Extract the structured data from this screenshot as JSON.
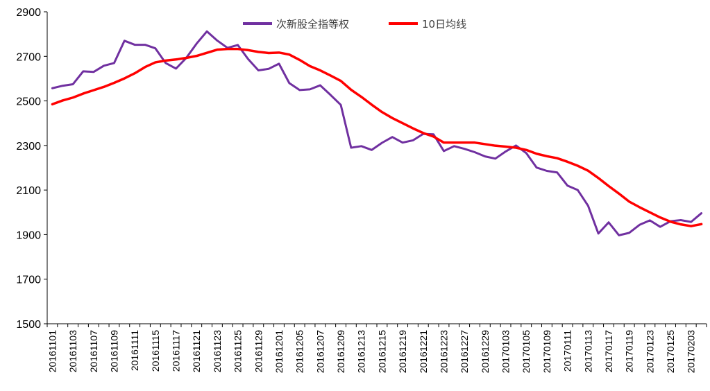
{
  "chart_data": {
    "type": "line",
    "title": "",
    "xlabel": "",
    "ylabel": "",
    "ylim": [
      1500,
      2900
    ],
    "yticks": [
      "1500",
      "1700",
      "1900",
      "2100",
      "2300",
      "2500",
      "2700",
      "2900"
    ],
    "xtick_labels": [
      "20161101",
      "20161103",
      "20161107",
      "20161109",
      "20161111",
      "20161115",
      "20161117",
      "20161121",
      "20161123",
      "20161125",
      "20161129",
      "20161201",
      "20161205",
      "20161207",
      "20161209",
      "20161213",
      "20161215",
      "20161219",
      "20161221",
      "20161223",
      "20161227",
      "20161229",
      "20170103",
      "20170105",
      "20170109",
      "20170111",
      "20170113",
      "20170117",
      "20170119",
      "20170123",
      "20170125",
      "20170203"
    ],
    "legend_position": "top-center",
    "series": [
      {
        "name": "次新股全指等权",
        "color": "#7030A0",
        "values": [
          2557,
          2568,
          2575,
          2633,
          2630,
          2658,
          2670,
          2770,
          2752,
          2752,
          2736,
          2670,
          2645,
          2693,
          2757,
          2812,
          2771,
          2738,
          2751,
          2688,
          2637,
          2644,
          2667,
          2580,
          2549,
          2552,
          2570,
          2527,
          2482,
          2290,
          2297,
          2280,
          2312,
          2338,
          2313,
          2323,
          2352,
          2350,
          2275,
          2297,
          2285,
          2270,
          2251,
          2241,
          2273,
          2300,
          2266,
          2201,
          2186,
          2179,
          2120,
          2100,
          2030,
          1905,
          1955,
          1897,
          1908,
          1944,
          1964,
          1935,
          1960,
          1965,
          1957,
          1996
        ]
      },
      {
        "name": "10日均线",
        "color": "#FF0000",
        "values": [
          2485,
          2502,
          2515,
          2533,
          2548,
          2563,
          2581,
          2601,
          2624,
          2652,
          2673,
          2681,
          2686,
          2693,
          2702,
          2716,
          2730,
          2733,
          2733,
          2728,
          2720,
          2715,
          2717,
          2708,
          2684,
          2656,
          2637,
          2614,
          2590,
          2550,
          2518,
          2483,
          2450,
          2423,
          2400,
          2377,
          2356,
          2340,
          2313,
          2313,
          2313,
          2313,
          2306,
          2299,
          2295,
          2290,
          2280,
          2263,
          2252,
          2243,
          2227,
          2209,
          2187,
          2154,
          2118,
          2084,
          2048,
          2023,
          2000,
          1977,
          1958,
          1946,
          1938,
          1947
        ]
      }
    ]
  }
}
